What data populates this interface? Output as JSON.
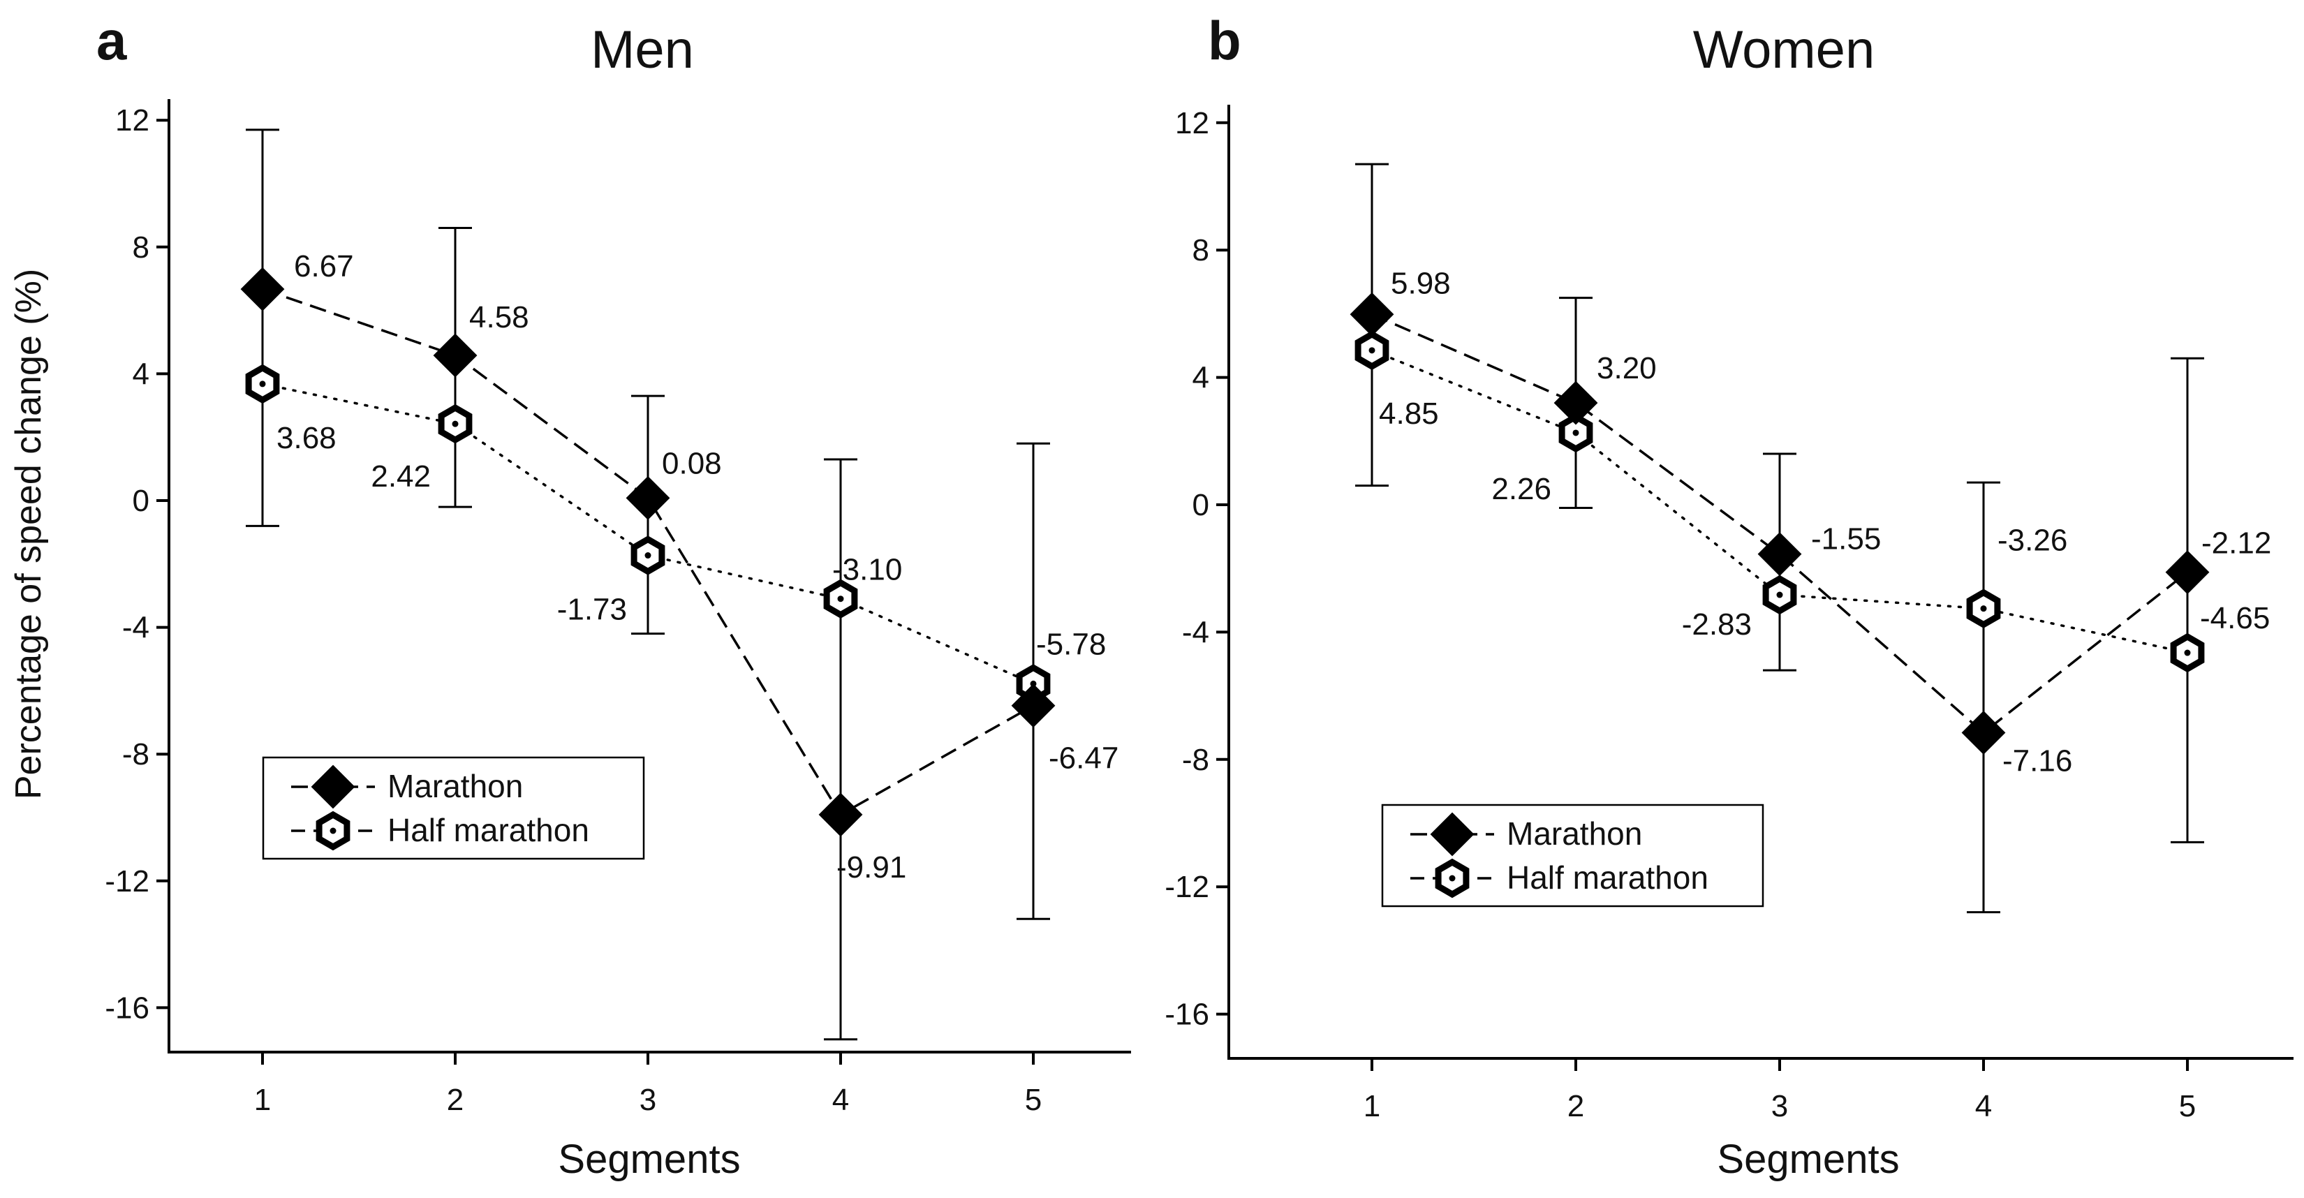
{
  "figure": {
    "ylabel": "Percentage of speed change (%)"
  },
  "chart_data": [
    {
      "type": "line",
      "panel_label": "a",
      "title": "Men",
      "xlabel": "Segments",
      "ylabel": "Percentage of speed change (%)",
      "categories": [
        "1",
        "2",
        "3",
        "4",
        "5"
      ],
      "x": [
        1,
        2,
        3,
        4,
        5
      ],
      "ylim": [
        -16,
        12
      ],
      "yticks": [
        12,
        8,
        4,
        0,
        -4,
        -8,
        -12,
        -16
      ],
      "ytick_labels": [
        "12",
        "8",
        "4",
        "0",
        "-4",
        "-8",
        "-12",
        "-16"
      ],
      "legend_position": "bottom-left",
      "series": [
        {
          "name": "Marathon",
          "marker": "diamond",
          "line": "dashed",
          "values": [
            6.67,
            4.58,
            0.08,
            -9.91,
            -6.47
          ],
          "labels": [
            "6.67",
            "4.58",
            "0.08",
            "-9.91",
            "-6.47"
          ],
          "err_low": [
            -0.8,
            -0.2,
            -4.2,
            -17.0,
            -13.2
          ],
          "err_high": [
            11.7,
            8.6,
            3.3,
            1.3,
            1.8
          ]
        },
        {
          "name": "Half marathon",
          "marker": "hexagon",
          "line": "dotted",
          "values": [
            3.68,
            2.42,
            -1.73,
            -3.1,
            -5.78
          ],
          "labels": [
            "3.68",
            "2.42",
            "-1.73",
            "-3.10",
            "-5.78"
          ]
        }
      ]
    },
    {
      "type": "line",
      "panel_label": "b",
      "title": "Women",
      "xlabel": "Segments",
      "ylabel": "",
      "categories": [
        "1",
        "2",
        "3",
        "4",
        "5"
      ],
      "x": [
        1,
        2,
        3,
        4,
        5
      ],
      "ylim": [
        -16,
        12
      ],
      "yticks": [
        12,
        8,
        4,
        0,
        -4,
        -8,
        -12,
        -16
      ],
      "ytick_labels": [
        "12",
        "8",
        "4",
        "0",
        "-4",
        "-8",
        "-12",
        "-16"
      ],
      "legend_position": "bottom-left",
      "series": [
        {
          "name": "Marathon",
          "marker": "diamond",
          "line": "dashed",
          "values": [
            5.98,
            3.2,
            -1.55,
            -7.16,
            -2.12
          ],
          "labels": [
            "5.98",
            "3.20",
            "-1.55",
            "-7.16",
            "-2.12"
          ],
          "err_low": [
            0.6,
            -0.1,
            -5.2,
            -12.8,
            -10.6
          ],
          "err_high": [
            10.7,
            6.5,
            1.6,
            0.7,
            4.6
          ]
        },
        {
          "name": "Half marathon",
          "marker": "hexagon",
          "line": "dotted",
          "values": [
            4.85,
            2.26,
            -2.83,
            -3.26,
            -4.65
          ],
          "labels": [
            "4.85",
            "2.26",
            "-2.83",
            "-3.26",
            "-4.65"
          ]
        }
      ]
    }
  ]
}
